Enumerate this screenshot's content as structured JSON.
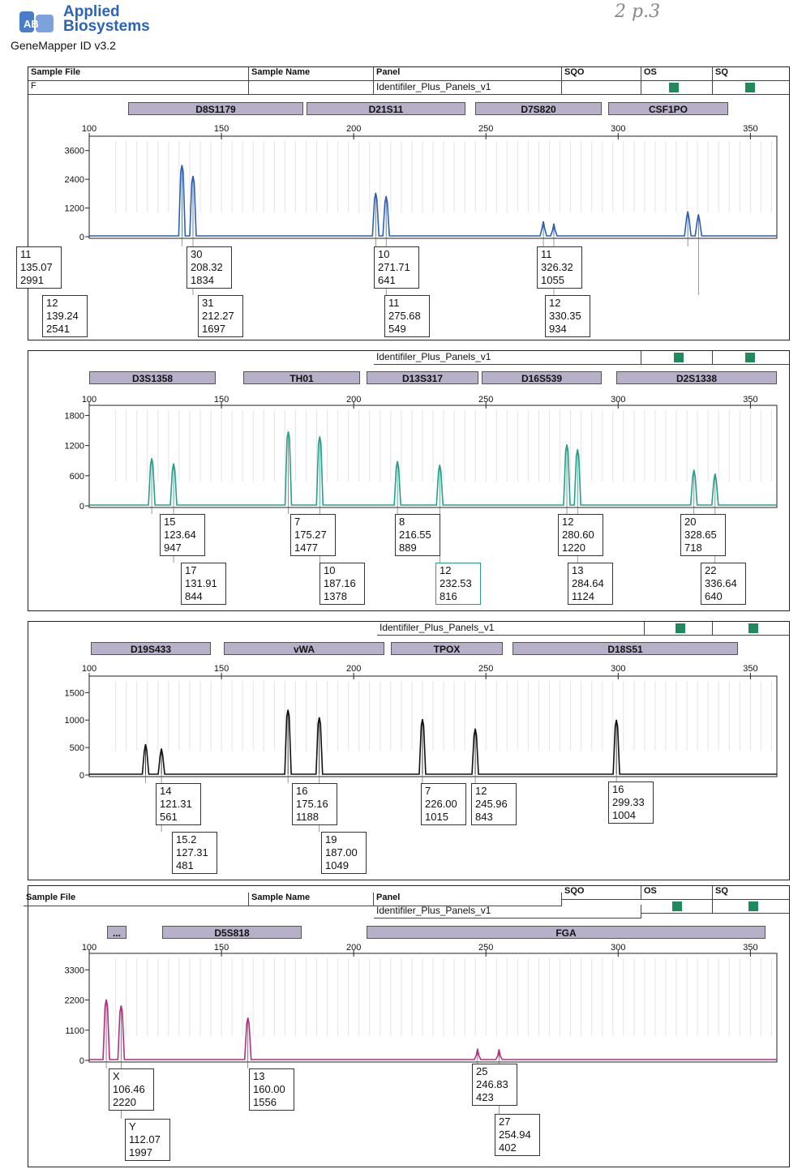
{
  "header": {
    "brand_line1": "Applied",
    "brand_line2": "Biosystems",
    "software": "GeneMapper ID v3.2",
    "scribble": "2 p.3"
  },
  "columns": {
    "sample_file": "Sample File",
    "sample_name": "Sample Name",
    "panel": "Panel",
    "sqo": "SQO",
    "os": "OS",
    "sq": "SQ",
    "panel_value": "Identifiler_Plus_Panels_v1",
    "row_prefix": "F"
  },
  "colors": {
    "blue": "#2f5fb0",
    "green": "#2a9d88",
    "black": "#111111",
    "magenta": "#b0307f",
    "status": "#1f8a5b"
  },
  "chart_data": [
    {
      "type": "line",
      "dye": "blue",
      "x_range": [
        100,
        360
      ],
      "x_ticks": [
        "100",
        "150",
        "200",
        "250",
        "300",
        "350"
      ],
      "y_ticks": [
        "0",
        "1200",
        "2400",
        "3600"
      ],
      "ylim": [
        0,
        4200
      ],
      "markers": [
        "D8S1179",
        "D21S11",
        "D7S820",
        "CSF1PO"
      ],
      "peaks": [
        {
          "allele": "11",
          "size": "135.07",
          "height": "2991"
        },
        {
          "allele": "12",
          "size": "139.24",
          "height": "2541"
        },
        {
          "allele": "30",
          "size": "208.32",
          "height": "1834"
        },
        {
          "allele": "31",
          "size": "212.27",
          "height": "1697"
        },
        {
          "allele": "10",
          "size": "271.71",
          "height": "641"
        },
        {
          "allele": "11",
          "size": "275.68",
          "height": "549"
        },
        {
          "allele": "11",
          "size": "326.32",
          "height": "1055"
        },
        {
          "allele": "12",
          "size": "330.35",
          "height": "934"
        }
      ]
    },
    {
      "type": "line",
      "dye": "green",
      "x_range": [
        100,
        360
      ],
      "x_ticks": [
        "100",
        "150",
        "200",
        "250",
        "300",
        "350"
      ],
      "y_ticks": [
        "0",
        "600",
        "1200",
        "1800"
      ],
      "ylim": [
        0,
        2000
      ],
      "markers": [
        "D3S1358",
        "TH01",
        "D13S317",
        "D16S539",
        "D2S1338"
      ],
      "peaks": [
        {
          "allele": "15",
          "size": "123.64",
          "height": "947"
        },
        {
          "allele": "17",
          "size": "131.91",
          "height": "844"
        },
        {
          "allele": "7",
          "size": "175.27",
          "height": "1477"
        },
        {
          "allele": "10",
          "size": "187.16",
          "height": "1378"
        },
        {
          "allele": "8",
          "size": "216.55",
          "height": "889"
        },
        {
          "allele": "12",
          "size": "232.53",
          "height": "816"
        },
        {
          "allele": "12",
          "size": "280.60",
          "height": "1220"
        },
        {
          "allele": "13",
          "size": "284.64",
          "height": "1124"
        },
        {
          "allele": "20",
          "size": "328.65",
          "height": "718"
        },
        {
          "allele": "22",
          "size": "336.64",
          "height": "640"
        }
      ]
    },
    {
      "type": "line",
      "dye": "black",
      "x_range": [
        100,
        360
      ],
      "x_ticks": [
        "100",
        "150",
        "200",
        "250",
        "300",
        "350"
      ],
      "y_ticks": [
        "0",
        "500",
        "1000",
        "1500"
      ],
      "ylim": [
        0,
        1800
      ],
      "markers": [
        "D19S433",
        "vWA",
        "TPOX",
        "D18S51"
      ],
      "peaks": [
        {
          "allele": "14",
          "size": "121.31",
          "height": "561"
        },
        {
          "allele": "15.2",
          "size": "127.31",
          "height": "481"
        },
        {
          "allele": "16",
          "size": "175.16",
          "height": "1188"
        },
        {
          "allele": "19",
          "size": "187.00",
          "height": "1049"
        },
        {
          "allele": "7",
          "size": "226.00",
          "height": "1015"
        },
        {
          "allele": "12",
          "size": "245.96",
          "height": "843"
        },
        {
          "allele": "16",
          "size": "299.33",
          "height": "1004"
        }
      ]
    },
    {
      "type": "line",
      "dye": "magenta",
      "x_range": [
        100,
        360
      ],
      "x_ticks": [
        "100",
        "150",
        "200",
        "250",
        "300",
        "350"
      ],
      "y_ticks": [
        "0",
        "1100",
        "2200",
        "3300"
      ],
      "ylim": [
        0,
        3900
      ],
      "markers": [
        "...",
        "D5S818",
        "FGA"
      ],
      "peaks": [
        {
          "allele": "X",
          "size": "106.46",
          "height": "2220"
        },
        {
          "allele": "Y",
          "size": "112.07",
          "height": "1997"
        },
        {
          "allele": "13",
          "size": "160.00",
          "height": "1556"
        },
        {
          "allele": "25",
          "size": "246.83",
          "height": "423"
        },
        {
          "allele": "27",
          "size": "254.94",
          "height": "402"
        }
      ]
    }
  ]
}
